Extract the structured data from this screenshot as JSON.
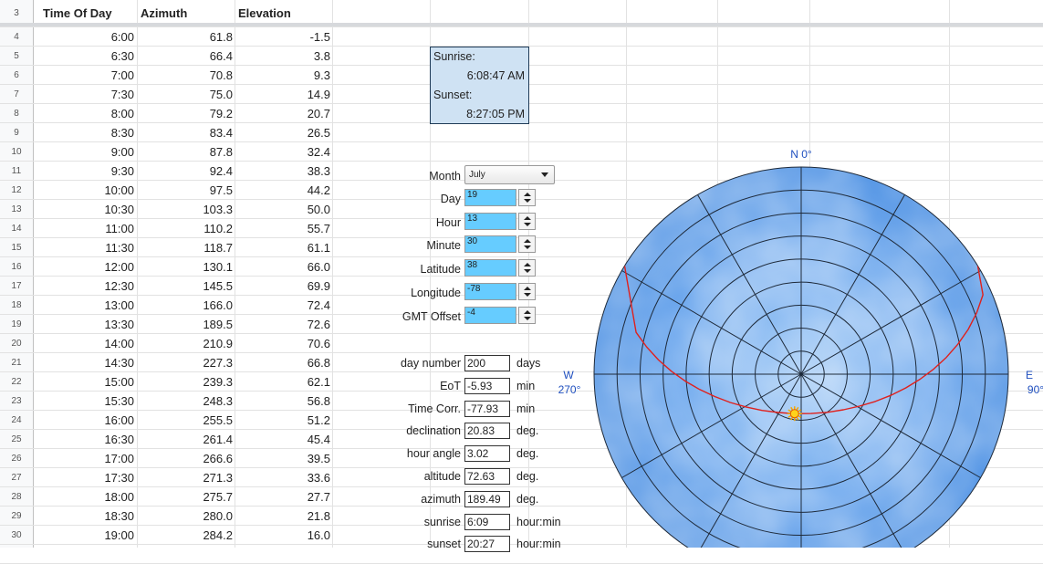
{
  "sheet": {
    "headers": {
      "row": "3",
      "time": "Time Of Day",
      "azimuth": "Azimuth",
      "elevation": "Elevation"
    },
    "rows": [
      {
        "n": "4",
        "time": "6:00",
        "az": "61.8",
        "el": "-1.5"
      },
      {
        "n": "5",
        "time": "6:30",
        "az": "66.4",
        "el": "3.8"
      },
      {
        "n": "6",
        "time": "7:00",
        "az": "70.8",
        "el": "9.3"
      },
      {
        "n": "7",
        "time": "7:30",
        "az": "75.0",
        "el": "14.9"
      },
      {
        "n": "8",
        "time": "8:00",
        "az": "79.2",
        "el": "20.7"
      },
      {
        "n": "9",
        "time": "8:30",
        "az": "83.4",
        "el": "26.5"
      },
      {
        "n": "10",
        "time": "9:00",
        "az": "87.8",
        "el": "32.4"
      },
      {
        "n": "11",
        "time": "9:30",
        "az": "92.4",
        "el": "38.3"
      },
      {
        "n": "12",
        "time": "10:00",
        "az": "97.5",
        "el": "44.2"
      },
      {
        "n": "13",
        "time": "10:30",
        "az": "103.3",
        "el": "50.0"
      },
      {
        "n": "14",
        "time": "11:00",
        "az": "110.2",
        "el": "55.7"
      },
      {
        "n": "15",
        "time": "11:30",
        "az": "118.7",
        "el": "61.1"
      },
      {
        "n": "16",
        "time": "12:00",
        "az": "130.1",
        "el": "66.0"
      },
      {
        "n": "17",
        "time": "12:30",
        "az": "145.5",
        "el": "69.9"
      },
      {
        "n": "18",
        "time": "13:00",
        "az": "166.0",
        "el": "72.4"
      },
      {
        "n": "19",
        "time": "13:30",
        "az": "189.5",
        "el": "72.6"
      },
      {
        "n": "20",
        "time": "14:00",
        "az": "210.9",
        "el": "70.6"
      },
      {
        "n": "21",
        "time": "14:30",
        "az": "227.3",
        "el": "66.8"
      },
      {
        "n": "22",
        "time": "15:00",
        "az": "239.3",
        "el": "62.1"
      },
      {
        "n": "23",
        "time": "15:30",
        "az": "248.3",
        "el": "56.8"
      },
      {
        "n": "24",
        "time": "16:00",
        "az": "255.5",
        "el": "51.2"
      },
      {
        "n": "25",
        "time": "16:30",
        "az": "261.4",
        "el": "45.4"
      },
      {
        "n": "26",
        "time": "17:00",
        "az": "266.6",
        "el": "39.5"
      },
      {
        "n": "27",
        "time": "17:30",
        "az": "271.3",
        "el": "33.6"
      },
      {
        "n": "28",
        "time": "18:00",
        "az": "275.7",
        "el": "27.7"
      },
      {
        "n": "29",
        "time": "18:30",
        "az": "280.0",
        "el": "21.8"
      },
      {
        "n": "30",
        "time": "19:00",
        "az": "284.2",
        "el": "16.0"
      }
    ]
  },
  "sunbox": {
    "sunrise_label": "Sunrise:",
    "sunrise_value": "6:08:47 AM",
    "sunset_label": "Sunset:",
    "sunset_value": "8:27:05 PM",
    "bg_color": "#cfe2f3"
  },
  "controls": {
    "month_label": "Month",
    "month_value": "July",
    "spinners": [
      {
        "label": "Day",
        "value": "19"
      },
      {
        "label": "Hour",
        "value": "13"
      },
      {
        "label": "Minute",
        "value": "30"
      },
      {
        "label": "Latitude",
        "value": "38"
      },
      {
        "label": "Longitude",
        "value": "-78"
      },
      {
        "label": "GMT Offset",
        "value": "-4"
      }
    ],
    "spinner_color": "#66ccff"
  },
  "outputs": [
    {
      "label": "day number",
      "value": "200",
      "unit": "days"
    },
    {
      "label": "EoT",
      "value": "-5.93",
      "unit": "min"
    },
    {
      "label": "Time Corr.",
      "value": "-77.93",
      "unit": "min"
    },
    {
      "label": "declination",
      "value": "20.83",
      "unit": "deg."
    },
    {
      "label": "hour angle",
      "value": "3.02",
      "unit": "deg."
    },
    {
      "label": "altitude",
      "value": "72.63",
      "unit": "deg."
    },
    {
      "label": "azimuth",
      "value": "189.49",
      "unit": "deg."
    },
    {
      "label": "sunrise",
      "value": "6:09",
      "unit": "hour:min"
    },
    {
      "label": "sunset",
      "value": "20:27",
      "unit": "hour:min"
    }
  ],
  "polar": {
    "north": "N 0°",
    "east_letter": "E",
    "east_deg": "90°",
    "west_letter": "W",
    "west_deg": "270°",
    "sky_color": "#5fa0ea",
    "path_color": "#e0201c",
    "sun_color": "#ffd21a",
    "sun": {
      "azimuth": 189.49,
      "altitude": 72.63
    }
  }
}
